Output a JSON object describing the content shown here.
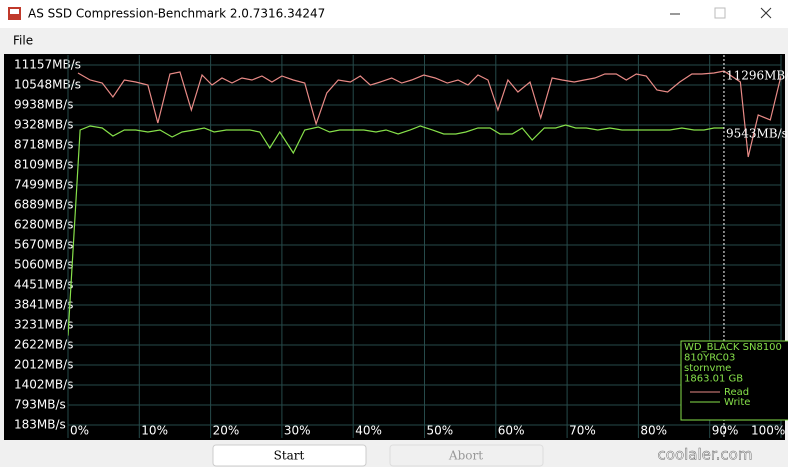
{
  "window": {
    "title": "AS SSD Compression-Benchmark 2.0.7316.34247",
    "menu": [
      "File"
    ],
    "buttons": [
      "Start",
      "Abort"
    ],
    "watermark": "coolaler.com"
  },
  "chart_data": {
    "type": "line",
    "xlim": [
      0,
      100
    ],
    "ylim": [
      -213,
      11462
    ],
    "xticks": [
      {
        "value": 0,
        "label": "0%"
      },
      {
        "value": 10,
        "label": "10%"
      },
      {
        "value": 20,
        "label": "20%"
      },
      {
        "value": 30,
        "label": "30%"
      },
      {
        "value": 40,
        "label": "40%"
      },
      {
        "value": 50,
        "label": "50%"
      },
      {
        "value": 60,
        "label": "60%"
      },
      {
        "value": 70,
        "label": "70%"
      },
      {
        "value": 80,
        "label": "80%"
      },
      {
        "value": 90,
        "label": "90%"
      },
      {
        "value": 100,
        "label": "100%"
      }
    ],
    "yticks": [
      {
        "value": 11157,
        "label": "11157MB/s"
      },
      {
        "value": 10548,
        "label": "10548MB/s"
      },
      {
        "value": 9938,
        "label": "9938MB/s"
      },
      {
        "value": 9328,
        "label": "9328MB/s"
      },
      {
        "value": 8718,
        "label": "8718MB/s"
      },
      {
        "value": 8109,
        "label": "8109MB/s"
      },
      {
        "value": 7499,
        "label": "7499MB/s"
      },
      {
        "value": 6889,
        "label": "6889MB/s"
      },
      {
        "value": 6280,
        "label": "6280MB/s"
      },
      {
        "value": 5670,
        "label": "5670MB/s"
      },
      {
        "value": 5060,
        "label": "5060MB/s"
      },
      {
        "value": 4451,
        "label": "4451MB/s"
      },
      {
        "value": 3841,
        "label": "3841MB/s"
      },
      {
        "value": 3231,
        "label": "3231MB/s"
      },
      {
        "value": 2622,
        "label": "2622MB/s"
      },
      {
        "value": 2012,
        "label": "2012MB/s"
      },
      {
        "value": 1402,
        "label": "1402MB/s"
      },
      {
        "value": 793,
        "label": "793MB/s"
      },
      {
        "value": 183,
        "label": "183MB/s"
      }
    ],
    "grid": true,
    "cursor": {
      "x": 92,
      "labels": [
        "11296MB/s",
        "9543MB/s"
      ]
    },
    "device": [
      "WD_BLACK SN8100",
      "810YRC03",
      "stornvme",
      "1863.01 GB"
    ],
    "series": [
      {
        "name": "Read",
        "color": "#e88a86",
        "x": [
          1.4,
          3.1,
          4.8,
          6.3,
          7.9,
          9.5,
          11.2,
          12.6,
          14.3,
          15.7,
          17.3,
          18.8,
          20.2,
          21.6,
          23.0,
          24.4,
          25.8,
          27.2,
          28.6,
          30.0,
          31.6,
          33.2,
          34.8,
          36.3,
          37.9,
          39.6,
          41.0,
          42.4,
          43.8,
          45.4,
          46.8,
          48.2,
          49.9,
          51.5,
          53.2,
          54.7,
          56.1,
          57.5,
          58.9,
          60.3,
          61.7,
          63.1,
          64.8,
          66.3,
          67.9,
          69.3,
          71.0,
          72.4,
          73.9,
          75.3,
          76.9,
          78.3,
          79.7,
          81.1,
          82.6,
          84.1,
          85.8,
          87.5,
          88.9,
          90.6,
          92.0,
          94.3,
          95.4,
          96.8,
          98.5,
          100
        ],
        "values": [
          10913,
          10700,
          10608,
          10182,
          10700,
          10639,
          10547,
          9389,
          10883,
          10944,
          9785,
          10852,
          10547,
          10761,
          10608,
          10761,
          10700,
          10822,
          10639,
          10822,
          10700,
          10608,
          9359,
          10304,
          10700,
          10639,
          10822,
          10547,
          10639,
          10761,
          10608,
          10700,
          10852,
          10761,
          10608,
          10700,
          10547,
          10852,
          10700,
          9785,
          10700,
          10334,
          10639,
          9542,
          10761,
          10700,
          10639,
          10700,
          10761,
          10883,
          10883,
          10700,
          10883,
          10822,
          10395,
          10334,
          10639,
          10883,
          10883,
          10913,
          10974,
          10639,
          8353,
          9633,
          9481,
          10822
        ]
      },
      {
        "name": "Write",
        "color": "#86e04a",
        "x": [
          0,
          1.7,
          3.1,
          4.8,
          6.3,
          7.9,
          9.5,
          11.2,
          12.9,
          14.6,
          16.0,
          17.7,
          19.1,
          20.5,
          22.2,
          23.8,
          25.5,
          26.9,
          28.3,
          29.7,
          31.6,
          33.2,
          35.1,
          36.7,
          38.1,
          39.8,
          41.5,
          43.2,
          44.6,
          46.3,
          48.0,
          49.4,
          51.1,
          52.7,
          54.4,
          55.8,
          57.5,
          59.2,
          60.6,
          62.3,
          63.7,
          65.1,
          66.8,
          68.4,
          69.8,
          71.2,
          72.7,
          74.3,
          76.0,
          77.7,
          79.4,
          81.1,
          82.7,
          84.4,
          86.1,
          87.8,
          89.2,
          90.6,
          92.0
        ],
        "values": [
          2909,
          9176,
          9298,
          9237,
          8993,
          9176,
          9176,
          9115,
          9176,
          8963,
          9115,
          9176,
          9237,
          9115,
          9176,
          9176,
          9176,
          9115,
          8627,
          9115,
          8475,
          9176,
          9267,
          9115,
          9176,
          9176,
          9176,
          9115,
          9176,
          9054,
          9176,
          9298,
          9176,
          9054,
          9054,
          9115,
          9237,
          9237,
          9054,
          9054,
          9237,
          8871,
          9237,
          9237,
          9328,
          9237,
          9237,
          9176,
          9237,
          9176,
          9176,
          9176,
          9176,
          9176,
          9237,
          9176,
          9176,
          9237,
          9237
        ]
      }
    ]
  }
}
